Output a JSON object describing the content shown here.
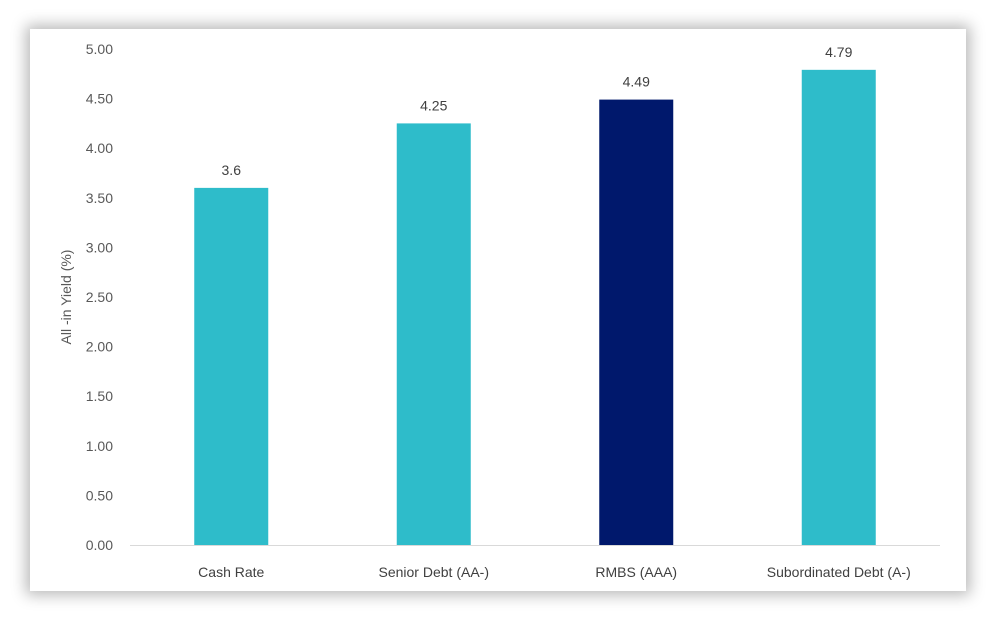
{
  "chart_data": {
    "type": "bar",
    "categories": [
      "Cash Rate",
      "Senior Debt (AA-)",
      "RMBS (AAA)",
      "Subordinated Debt (A-)"
    ],
    "values": [
      3.6,
      4.25,
      4.49,
      4.79
    ],
    "data_labels": [
      "3.6",
      "4.25",
      "4.49",
      "4.79"
    ],
    "bar_colors": [
      "#2ebcca",
      "#2ebcca",
      "#00186c",
      "#2ebcca"
    ],
    "title": "",
    "xlabel": "",
    "ylabel": "All -in Yield (%)",
    "ylim": [
      0,
      5
    ],
    "yticks": [
      "0.00",
      "0.50",
      "1.00",
      "1.50",
      "2.00",
      "2.50",
      "3.00",
      "3.50",
      "4.00",
      "4.50",
      "5.00"
    ],
    "grid": false,
    "legend": "none"
  },
  "colors": {
    "accent": "#2ebcca",
    "highlight": "#00186c",
    "axis": "#d9d9d9"
  }
}
